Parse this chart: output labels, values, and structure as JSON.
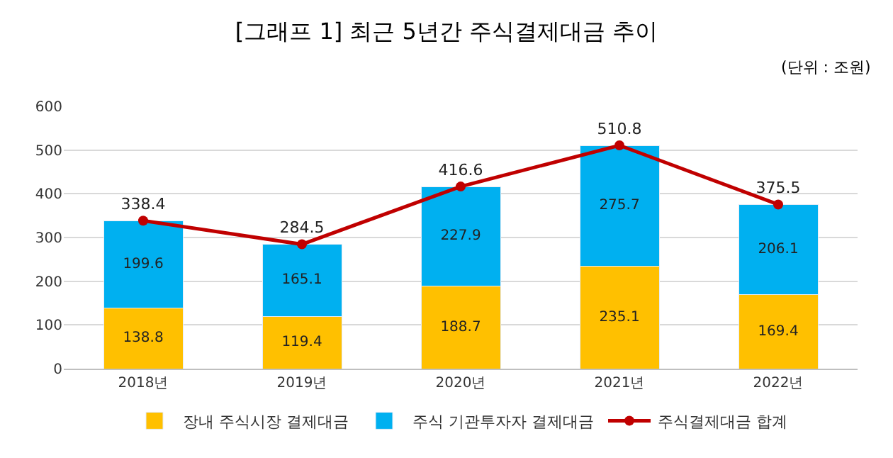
{
  "chart_data": {
    "type": "bar",
    "title": "[그래프 1] 최근 5년간 주식결제대금 추이",
    "annotations": [
      "(단위 : 조원)"
    ],
    "categories": [
      "2018년",
      "2019년",
      "2020년",
      "2021년",
      "2022년"
    ],
    "stacked": true,
    "data_labels": true,
    "grid": "y",
    "legend": "bottom",
    "marker": "circle",
    "line_style": "solid",
    "ylim": [
      0,
      600
    ],
    "yticks": [
      0,
      100,
      200,
      300,
      400,
      500,
      600
    ],
    "series": [
      {
        "name": "장내 주식시장 결제대금",
        "color": "#ffc000",
        "values": [
          138.8,
          119.4,
          188.7,
          235.1,
          169.4
        ]
      },
      {
        "name": "주식 기관투자자 결제대금",
        "color": "#00b0f0",
        "values": [
          199.6,
          165.1,
          227.9,
          275.7,
          206.1
        ]
      },
      {
        "name": "주식결제대금 합계",
        "type": "line",
        "color": "#c00000",
        "values": [
          338.4,
          284.5,
          416.6,
          510.8,
          375.5
        ]
      }
    ]
  }
}
